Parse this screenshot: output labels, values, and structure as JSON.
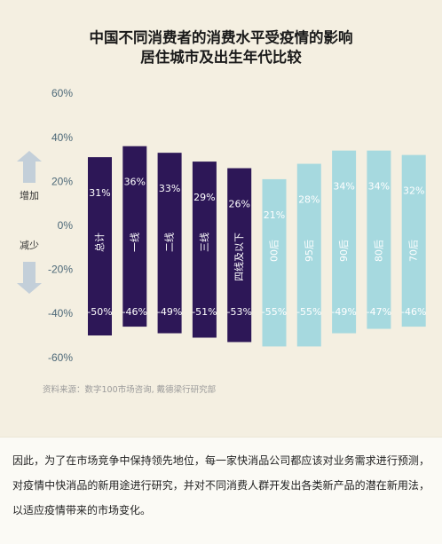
{
  "title_line1": "中国不同消费者的消费水平受疫情的影响",
  "title_line2": "居住城市及出生年代比较",
  "source": "资料来源：数字100市场咨询, 戴德梁行研究部",
  "note": "因此，为了在市场竞争中保持领先地位，每一家快消品公司都应该对业务需求进行预测，对疫情中快消品的新用途进行研究，并对不同消费人群开发出各类新产品的潜在新用法，以适应疫情带来的市场变化。",
  "indicators": {
    "up": "增加",
    "down": "减少"
  },
  "colors": {
    "city": "#2d1757",
    "generation": "#a6d9df",
    "axis": "#4c6878",
    "label_light": "#ffffff",
    "arrow": "#c3cfd9"
  },
  "chart_data": {
    "type": "bar",
    "categories": [
      "总计",
      "一线",
      "二线",
      "三线",
      "四线及以下",
      "00后",
      "95后",
      "90后",
      "80后",
      "70后"
    ],
    "series": [
      {
        "values": [
          31,
          36,
          33,
          29,
          26,
          21,
          28,
          34,
          34,
          32
        ]
      },
      {
        "values": [
          -50,
          -46,
          -49,
          -51,
          -53,
          -55,
          -55,
          -49,
          -47,
          -46
        ]
      }
    ],
    "positive_labels": [
      "31%",
      "36%",
      "33%",
      "29%",
      "26%",
      "21%",
      "28%",
      "34%",
      "34%",
      "32%"
    ],
    "negative_labels": [
      "-50%",
      "-46%",
      "-49%",
      "-51%",
      "-53%",
      "-55%",
      "-55%",
      "-49%",
      "-47%",
      "-46%"
    ],
    "group": [
      "city",
      "city",
      "city",
      "city",
      "city",
      "generation",
      "generation",
      "generation",
      "generation",
      "generation"
    ],
    "yticks": [
      "60%",
      "40%",
      "20%",
      "0%",
      "-20%",
      "-40%",
      "-60%"
    ],
    "ylim": [
      -60,
      60
    ],
    "grid": false
  }
}
